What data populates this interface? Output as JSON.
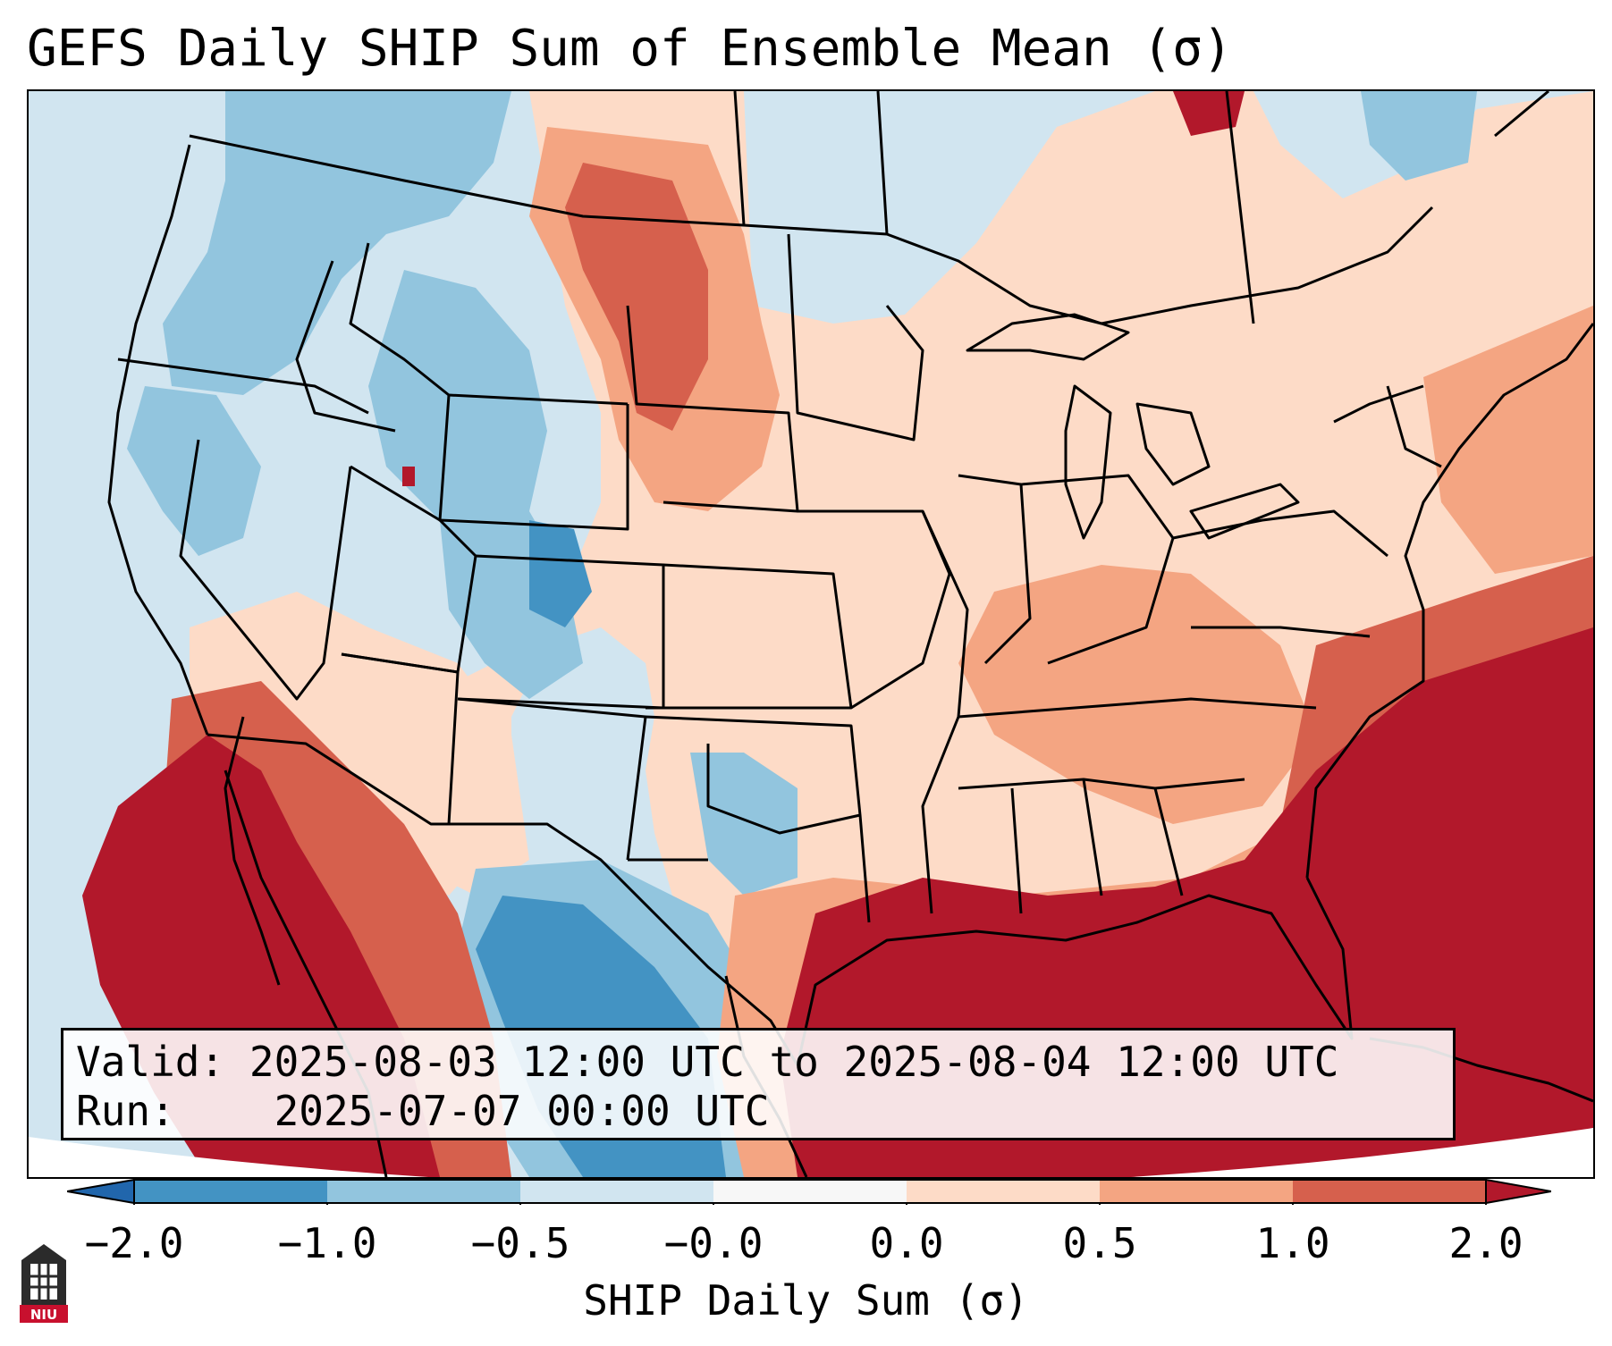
{
  "title": "GEFS Daily SHIP Sum of Ensemble Mean (σ)",
  "info": {
    "valid_label": "Valid:",
    "valid_value": "2025-08-03 12:00 UTC to 2025-08-04 12:00 UTC",
    "run_label": "Run:",
    "run_value": "2025-07-07 00:00 UTC"
  },
  "colorbar": {
    "title": "SHIP Daily Sum (σ)",
    "ticks": [
      "−2.0",
      "−1.0",
      "−0.5",
      "−0.0",
      "0.0",
      "0.5",
      "1.0",
      "2.0"
    ],
    "colors": [
      "#4393c3",
      "#92c5de",
      "#d1e5f0",
      "#f7f7f7",
      "#fddbc7",
      "#f4a582",
      "#d6604d"
    ],
    "extend_low": "#2166ac",
    "extend_high": "#b2182b"
  },
  "logo_text": "NIU",
  "colors": {
    "strong_negative": "#4393c3",
    "negative": "#92c5de",
    "weak_negative": "#d1e5f0",
    "weak_positive": "#fddbc7",
    "positive": "#f4a582",
    "strong_positive": "#d6604d",
    "extreme_positive": "#b2182b"
  }
}
